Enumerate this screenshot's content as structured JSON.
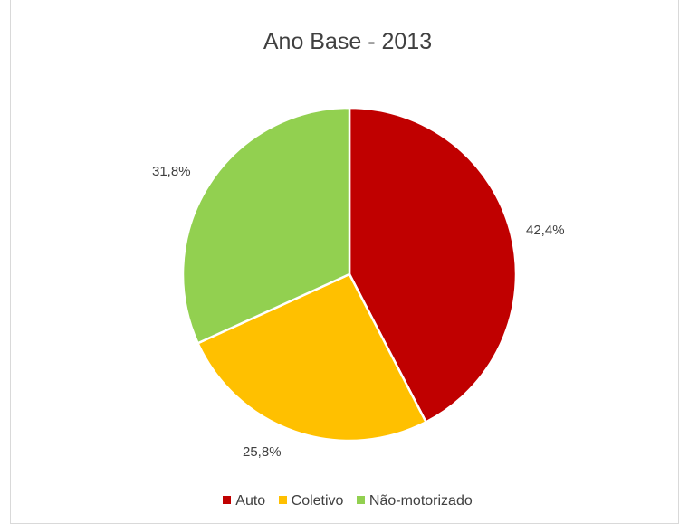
{
  "chart_data": {
    "type": "pie",
    "title": "Ano Base - 2013",
    "legend_position": "bottom",
    "slices": [
      {
        "name": "Auto",
        "value": 42.4,
        "label": "42,4%",
        "color": "#c00000"
      },
      {
        "name": "Coletivo",
        "value": 25.8,
        "label": "25,8%",
        "color": "#ffc000"
      },
      {
        "name": "Não-motorizado",
        "value": 31.8,
        "label": "31,8%",
        "color": "#92d050"
      }
    ]
  }
}
